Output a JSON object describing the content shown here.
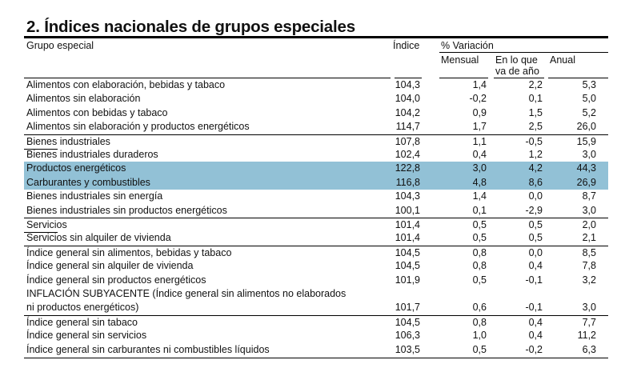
{
  "title": "2. Índices nacionales de grupos especiales",
  "header": {
    "group": "Grupo especial",
    "index": "Índice",
    "variation": "% Variación",
    "monthly": "Mensual",
    "ytd_line1": "En lo que",
    "ytd_line2": "va de año",
    "annual": "Anual"
  },
  "highlight_color": "#92c1d6",
  "rows": [
    {
      "label": "Alimentos con elaboración, bebidas y tabaco",
      "index": "104,3",
      "monthly": "1,4",
      "ytd": "2,2",
      "annual": "5,3"
    },
    {
      "label": "Alimentos sin elaboración",
      "index": "104,0",
      "monthly": "-0,2",
      "ytd": "0,1",
      "annual": "5,0"
    },
    {
      "label": "Alimentos con bebidas y tabaco",
      "index": "104,2",
      "monthly": "0,9",
      "ytd": "1,5",
      "annual": "5,2"
    },
    {
      "label": "Alimentos sin elaboración y productos energéticos",
      "index": "114,7",
      "monthly": "1,7",
      "ytd": "2,5",
      "annual": "26,0"
    },
    {
      "label": "Bienes industriales",
      "index": "107,8",
      "monthly": "1,1",
      "ytd": "-0,5",
      "annual": "15,9"
    },
    {
      "label": "Bienes industriales duraderos",
      "index": "102,4",
      "monthly": "0,4",
      "ytd": "1,2",
      "annual": "3,0"
    },
    {
      "label": "Productos energéticos",
      "index": "122,8",
      "monthly": "3,0",
      "ytd": "4,2",
      "annual": "44,3"
    },
    {
      "label": "Carburantes  y combustibles",
      "index": "116,8",
      "monthly": "4,8",
      "ytd": "8,6",
      "annual": "26,9"
    },
    {
      "label": "Bienes industriales sin energía",
      "index": "104,3",
      "monthly": "1,4",
      "ytd": "0,0",
      "annual": "8,7"
    },
    {
      "label": "Bienes industriales sin productos energéticos",
      "index": "100,1",
      "monthly": "0,1",
      "ytd": "-2,9",
      "annual": "3,0"
    },
    {
      "label": "Servicios",
      "index": "101,4",
      "monthly": "0,5",
      "ytd": "0,5",
      "annual": "2,0"
    },
    {
      "label": "Servicios sin alquiler de vivienda",
      "index": "101,4",
      "monthly": "0,5",
      "ytd": "0,5",
      "annual": "2,1"
    },
    {
      "label": "Índice general sin alimentos, bebidas y tabaco",
      "index": "104,5",
      "monthly": "0,8",
      "ytd": "0,0",
      "annual": "8,5"
    },
    {
      "label": "Índice general sin alquiler de vivienda",
      "index": "104,5",
      "monthly": "0,8",
      "ytd": "0,4",
      "annual": "7,8"
    },
    {
      "label": "Índice general sin productos energéticos",
      "index": "101,9",
      "monthly": "0,5",
      "ytd": "-0,1",
      "annual": "3,2"
    },
    {
      "label": "INFLACIÓN SUBYACENTE (Índice general sin alimentos no elaborados",
      "label2": "ni productos energéticos)",
      "index": "101,7",
      "monthly": "0,6",
      "ytd": "-0,1",
      "annual": "3,0"
    },
    {
      "label": "Índice general sin tabaco",
      "index": "104,5",
      "monthly": "0,8",
      "ytd": "0,4",
      "annual": "7,7"
    },
    {
      "label": "Índice general sin servicios",
      "index": "106,3",
      "monthly": "1,0",
      "ytd": "0,4",
      "annual": "11,2"
    },
    {
      "label": "Índice general sin carburantes ni combustibles líquidos",
      "index": "103,5",
      "monthly": "0,5",
      "ytd": "-0,2",
      "annual": "6,3"
    }
  ]
}
